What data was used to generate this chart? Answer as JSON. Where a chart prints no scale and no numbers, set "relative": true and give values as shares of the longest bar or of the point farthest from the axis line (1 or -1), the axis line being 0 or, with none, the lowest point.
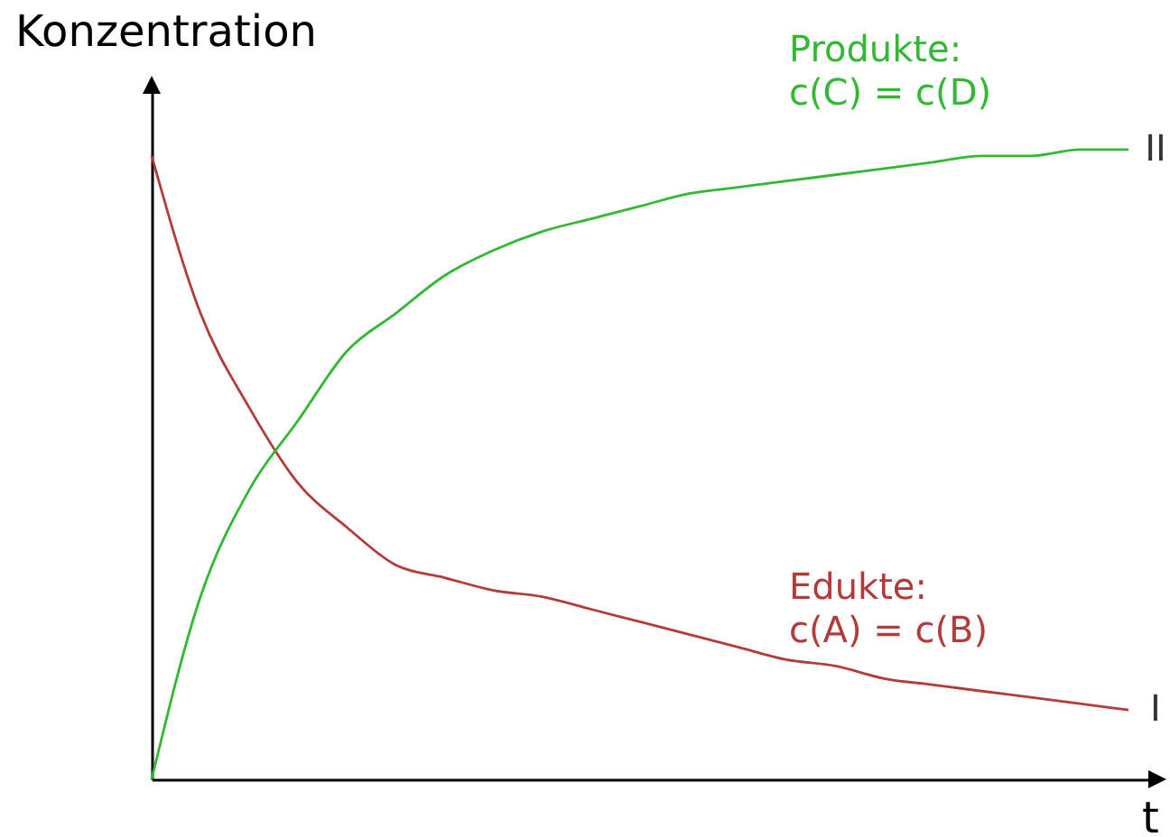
{
  "chart_data": {
    "type": "line",
    "relative": true,
    "xlabel": "t",
    "ylabel": "Konzentration",
    "categories": [
      null,
      null,
      null,
      null,
      null,
      null,
      null,
      null,
      null,
      null,
      null,
      null,
      null,
      null,
      null,
      null,
      null,
      null,
      null,
      null,
      null
    ],
    "series": [
      {
        "name": "Edukte:\nc(A) = c(B)",
        "color": "#b23b3b",
        "values": [
          0.99,
          0.74,
          0.59,
          0.47,
          0.4,
          0.34,
          0.32,
          0.3,
          0.29,
          0.27,
          0.25,
          0.23,
          0.21,
          0.19,
          0.18,
          0.16,
          0.15,
          0.14,
          0.13,
          0.12,
          0.11
        ]
      },
      {
        "name": "Produkte:\nc(C) = c(D)",
        "color": "#33b833",
        "values": [
          0,
          0.29,
          0.46,
          0.57,
          0.68,
          0.74,
          0.8,
          0.84,
          0.87,
          0.89,
          0.91,
          0.93,
          0.94,
          0.95,
          0.96,
          0.97,
          0.98,
          0.99,
          0.99,
          1,
          1
        ]
      }
    ],
    "annotations": [
      "I",
      "II"
    ]
  }
}
